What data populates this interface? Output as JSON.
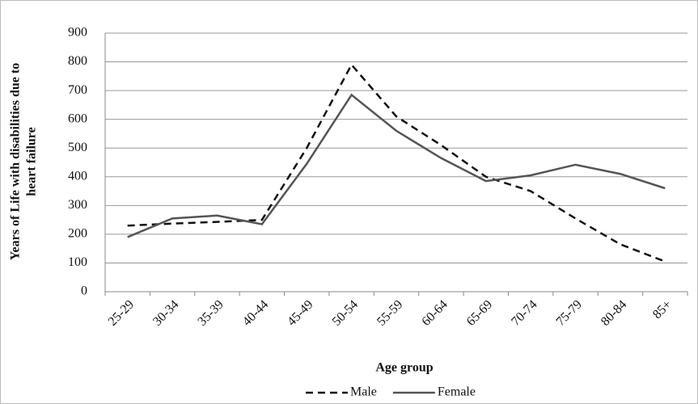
{
  "chart_data": {
    "type": "line",
    "xlabel": "Age group",
    "ylabel": [
      "Years of Life with disabilities  due to",
      "heart failure"
    ],
    "categories": [
      "25-29",
      "30-34",
      "35-39",
      "40-44",
      "45-49",
      "50-54",
      "55-59",
      "60-64",
      "65-69",
      "70-74",
      "75-79",
      "80-84",
      "85+"
    ],
    "series": [
      {
        "name": "Male",
        "color": "#111111",
        "dash": true,
        "values": [
          230,
          237,
          243,
          250,
          500,
          790,
          610,
          510,
          400,
          350,
          255,
          165,
          105
        ]
      },
      {
        "name": "Female",
        "color": "#555555",
        "dash": false,
        "values": [
          190,
          255,
          265,
          235,
          445,
          685,
          560,
          465,
          385,
          405,
          442,
          410,
          360
        ]
      }
    ],
    "ylim": [
      0,
      900
    ],
    "yticks": [
      0,
      100,
      200,
      300,
      400,
      500,
      600,
      700,
      800,
      900
    ],
    "grid": true
  }
}
